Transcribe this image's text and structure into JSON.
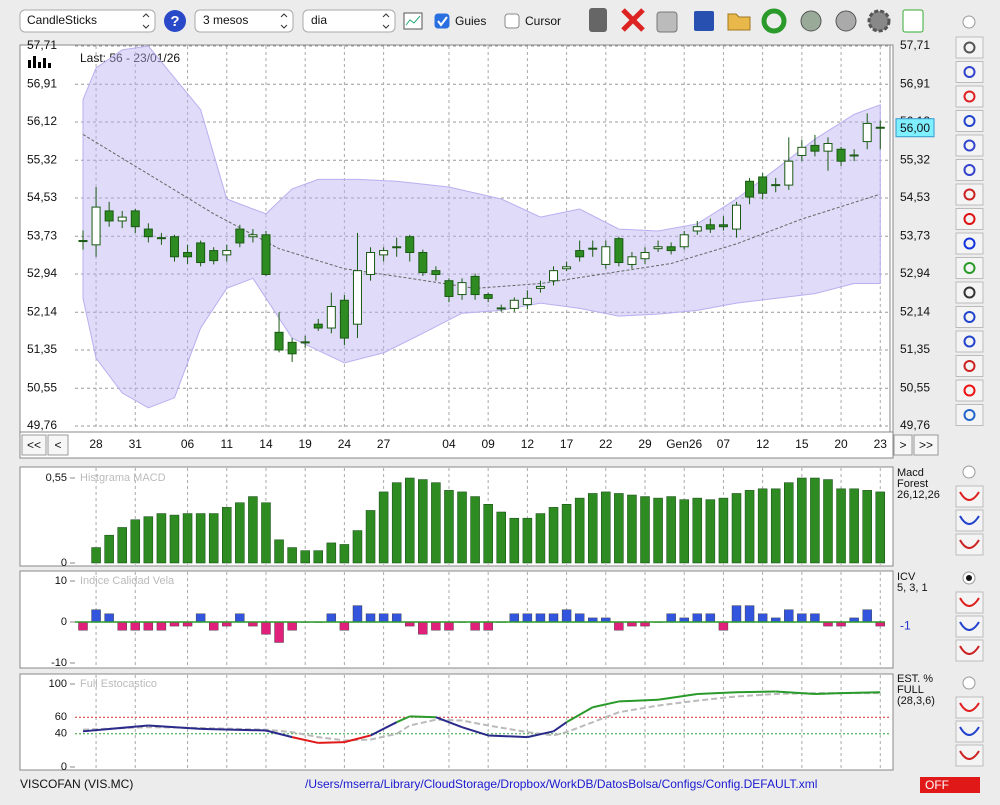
{
  "toolbar": {
    "chart_type": "CandleSticks",
    "period": "3 mesos",
    "interval": "dia",
    "guides": "Guies",
    "cursor": "Cursor",
    "guides_checked": true,
    "cursor_checked": false
  },
  "main_chart": {
    "type": "candlestick",
    "annotation": "Last: 56 - 23/01/26",
    "last_price": {
      "value": 56.0,
      "label": "56,00"
    },
    "ylim": [
      49.76,
      57.71
    ],
    "yticks": [
      {
        "value": 57.71,
        "label": "57,71"
      },
      {
        "value": 56.91,
        "label": "56,91"
      },
      {
        "value": 56.12,
        "label": "56,12"
      },
      {
        "value": 55.32,
        "label": "55,32"
      },
      {
        "value": 54.53,
        "label": "54,53"
      },
      {
        "value": 53.73,
        "label": "53,73"
      },
      {
        "value": 52.94,
        "label": "52,94"
      },
      {
        "value": 52.14,
        "label": "52,14"
      },
      {
        "value": 51.35,
        "label": "51,35"
      },
      {
        "value": 50.55,
        "label": "50,55"
      },
      {
        "value": 49.76,
        "label": "49,76"
      }
    ],
    "categories": [
      null,
      "28",
      null,
      null,
      "31",
      null,
      null,
      null,
      "06",
      null,
      null,
      "11",
      null,
      null,
      "14",
      null,
      null,
      "19",
      null,
      null,
      "24",
      null,
      null,
      "27",
      null,
      null,
      null,
      null,
      "04",
      null,
      null,
      "09",
      null,
      null,
      "12",
      null,
      null,
      "17",
      null,
      null,
      "22",
      null,
      null,
      "29",
      null,
      null,
      "Gen26",
      null,
      null,
      "07",
      null,
      null,
      "12",
      null,
      null,
      "15",
      null,
      null,
      "20",
      null,
      null,
      "23"
    ],
    "open": [
      53.62,
      53.55,
      54.26,
      54.05,
      54.26,
      53.88,
      53.7,
      53.72,
      53.39,
      53.59,
      53.43,
      53.34,
      53.88,
      53.72,
      53.76,
      51.72,
      51.51,
      51.51,
      51.89,
      51.81,
      52.39,
      51.89,
      52.93,
      53.34,
      53.5,
      53.72,
      53.39,
      53.01,
      52.8,
      52.51,
      52.89,
      52.51,
      52.22,
      52.22,
      52.3,
      52.64,
      52.8,
      53.05,
      53.43,
      53.47,
      53.14,
      53.68,
      53.14,
      53.26,
      53.47,
      53.51,
      53.51,
      53.84,
      53.97,
      53.97,
      53.88,
      54.88,
      54.97,
      54.8,
      54.8,
      55.42,
      55.63,
      55.51,
      55.55,
      55.42,
      55.71,
      56.0
    ],
    "high": [
      53.85,
      54.76,
      54.45,
      54.26,
      54.3,
      54.0,
      53.8,
      53.76,
      53.55,
      53.64,
      53.5,
      53.55,
      53.97,
      53.88,
      53.84,
      52.14,
      51.6,
      51.65,
      52.0,
      52.55,
      52.5,
      53.8,
      53.5,
      53.5,
      53.7,
      53.76,
      53.45,
      53.1,
      52.85,
      52.85,
      52.95,
      52.55,
      52.3,
      52.45,
      52.6,
      52.8,
      53.1,
      53.2,
      53.64,
      53.64,
      53.64,
      53.72,
      53.4,
      53.5,
      53.64,
      53.6,
      53.84,
      54.05,
      54.1,
      54.15,
      54.45,
      54.95,
      55.05,
      54.95,
      55.8,
      55.75,
      55.85,
      55.8,
      55.6,
      55.55,
      56.3,
      56.15
    ],
    "low": [
      53.45,
      53.3,
      53.93,
      53.9,
      53.8,
      53.6,
      53.55,
      53.2,
      53.15,
      53.1,
      53.14,
      53.2,
      53.5,
      53.6,
      52.9,
      51.3,
      51.1,
      51.4,
      51.75,
      51.7,
      51.45,
      51.6,
      52.8,
      53.2,
      53.3,
      53.2,
      52.9,
      52.8,
      52.35,
      52.4,
      52.4,
      52.35,
      52.15,
      52.15,
      52.2,
      52.55,
      52.7,
      53.0,
      53.2,
      53.3,
      53.05,
      53.1,
      53.05,
      53.15,
      53.4,
      53.35,
      53.45,
      53.76,
      53.8,
      53.85,
      53.7,
      54.4,
      54.5,
      54.65,
      54.7,
      55.3,
      55.4,
      55.1,
      55.2,
      55.3,
      55.55,
      55.55
    ],
    "close": [
      53.64,
      54.34,
      54.05,
      54.13,
      53.93,
      53.72,
      53.68,
      53.3,
      53.3,
      53.18,
      53.22,
      53.43,
      53.59,
      53.76,
      52.93,
      51.35,
      51.27,
      51.52,
      51.81,
      52.26,
      51.6,
      53.01,
      53.39,
      53.43,
      53.51,
      53.39,
      52.97,
      52.93,
      52.47,
      52.76,
      52.51,
      52.43,
      52.23,
      52.39,
      52.43,
      52.68,
      53.01,
      53.09,
      53.3,
      53.48,
      53.51,
      53.18,
      53.3,
      53.39,
      53.51,
      53.43,
      53.76,
      53.93,
      53.88,
      53.93,
      54.38,
      54.55,
      54.63,
      54.81,
      55.3,
      55.59,
      55.51,
      55.67,
      55.3,
      55.43,
      56.09,
      56.01
    ],
    "up_color": "#ffffff",
    "down_color": "#2e8b22",
    "bands": {
      "color": "#b9b0f0",
      "upper": {
        "x": [
          0,
          1,
          3,
          5,
          9,
          11,
          13,
          14,
          16,
          18,
          21,
          24,
          28,
          32,
          35,
          38,
          41,
          44,
          47,
          50,
          53,
          56,
          59,
          61
        ],
        "values": [
          56.59,
          57.25,
          57.63,
          57.71,
          56.38,
          54.51,
          54.3,
          54.2,
          54.72,
          54.92,
          54.92,
          54.88,
          54.76,
          54.51,
          54.13,
          54.3,
          53.88,
          53.84,
          53.99,
          54.51,
          55.13,
          55.76,
          56.28,
          56.48
        ]
      },
      "lower": {
        "x": [
          0,
          1,
          3,
          5,
          7,
          9,
          11,
          13,
          16,
          20,
          23,
          26,
          29,
          32,
          35,
          38,
          41,
          44,
          47,
          50,
          53,
          56,
          59,
          61
        ],
        "values": [
          52.43,
          51.18,
          50.45,
          50.14,
          50.35,
          51.81,
          52.64,
          52.85,
          51.6,
          51.08,
          51.29,
          51.7,
          52.12,
          52.18,
          52.33,
          52.22,
          52.06,
          52.1,
          52.18,
          52.33,
          52.43,
          52.53,
          52.74,
          52.74
        ]
      }
    },
    "moving_average": {
      "color": "#666666",
      "x": [
        0,
        5,
        10,
        15,
        20,
        25,
        30,
        35,
        40,
        45,
        50,
        55,
        61
      ],
      "values": [
        55.86,
        55.03,
        54.2,
        53.47,
        53.05,
        52.85,
        52.64,
        52.74,
        52.95,
        53.16,
        53.57,
        54.09,
        54.61
      ]
    },
    "nav": [
      "<<",
      "<",
      ">",
      ">>"
    ]
  },
  "macd": {
    "type": "bar",
    "title": "Histgrama MACD",
    "legend": [
      "Macd",
      "Forest",
      "26,12,26"
    ],
    "ylim": [
      0,
      0.55
    ],
    "yticks": [
      {
        "value": 0.55,
        "label": "0,55"
      },
      0
    ],
    "color": "#2e8b22",
    "values": [
      null,
      0.1,
      0.18,
      0.23,
      0.28,
      0.3,
      0.32,
      0.31,
      0.32,
      0.32,
      0.32,
      0.36,
      0.39,
      0.43,
      0.39,
      0.15,
      0.1,
      0.08,
      0.08,
      0.13,
      0.12,
      0.21,
      0.34,
      0.46,
      0.52,
      0.55,
      0.54,
      0.52,
      0.47,
      0.46,
      0.43,
      0.38,
      0.33,
      0.29,
      0.29,
      0.32,
      0.36,
      0.38,
      0.42,
      0.45,
      0.46,
      0.45,
      0.44,
      0.43,
      0.42,
      0.43,
      0.41,
      0.42,
      0.41,
      0.42,
      0.45,
      0.47,
      0.48,
      0.48,
      0.52,
      0.55,
      0.55,
      0.54,
      0.48,
      0.48,
      0.47,
      0.46
    ]
  },
  "icv": {
    "type": "bar",
    "title": "Indice Calidad Vela",
    "legend": [
      "ICV",
      "5, 3, 1"
    ],
    "ylim": [
      -10,
      10
    ],
    "yticks": [
      10,
      0,
      -10
    ],
    "up_color": "#3355dd",
    "down_color": "#e0207a",
    "last_value": -1,
    "values": [
      -2,
      3,
      2,
      -2,
      -2,
      -2,
      -2,
      -1,
      -1,
      2,
      -2,
      -1,
      2,
      -1,
      -3,
      -5,
      -2,
      0,
      0,
      2,
      -2,
      4,
      2,
      2,
      2,
      -1,
      -3,
      -2,
      -2,
      0,
      -2,
      -2,
      0,
      2,
      2,
      2,
      2,
      3,
      2,
      1,
      1,
      -2,
      -1,
      -1,
      0,
      2,
      1,
      2,
      2,
      -2,
      4,
      4,
      2,
      1,
      3,
      2,
      2,
      -1,
      -1,
      1,
      3,
      -1
    ]
  },
  "stochastic": {
    "type": "line",
    "title": "Full Estocastico",
    "legend": [
      "EST. %",
      "FULL",
      "(28,3,6)"
    ],
    "ylim": [
      0,
      100
    ],
    "yticks": [
      100,
      60,
      40,
      0
    ],
    "grid_colors": [
      "none",
      "#cc3333",
      "#339933",
      "none"
    ],
    "k": {
      "x": [
        0,
        5,
        9,
        14,
        16,
        18,
        20,
        22,
        24,
        25,
        27,
        29,
        31,
        34,
        36,
        37,
        39,
        41,
        44,
        47,
        50,
        53,
        56,
        58,
        61
      ],
      "values": [
        43,
        50,
        46,
        44,
        36,
        29,
        30,
        38,
        54,
        61,
        60,
        48,
        38,
        36,
        43,
        54,
        72,
        79,
        81,
        88,
        90,
        91,
        88,
        89,
        90
      ]
    },
    "d": {
      "color": "#bbbbbb",
      "x": [
        0,
        5,
        9,
        14,
        16,
        18,
        20,
        22,
        24,
        25,
        27,
        29,
        31,
        34,
        36,
        37,
        39,
        41,
        44,
        47,
        50,
        53,
        56,
        58,
        61
      ],
      "values": [
        45,
        48,
        47,
        45,
        42,
        36,
        32,
        33,
        40,
        50,
        57,
        56,
        50,
        42,
        38,
        42,
        54,
        66,
        74,
        80,
        85,
        88,
        89,
        89,
        89
      ]
    }
  },
  "footer": {
    "symbol": "VISCOFAN (VIS.MC)",
    "path": "/Users/mserra/Library/CloudStorage/Dropbox/WorkDB/DatosBolsa/Configs/Config.DEFAULT.xml",
    "status": "OFF"
  }
}
